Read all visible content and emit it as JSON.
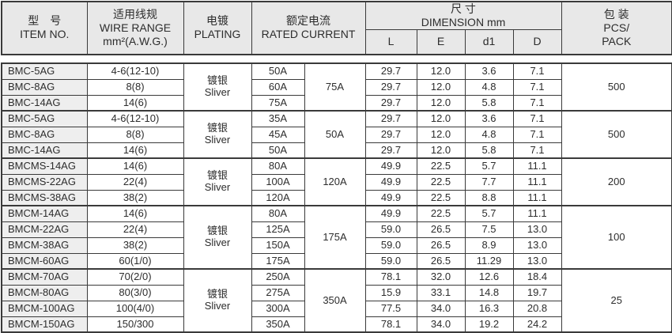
{
  "colors": {
    "border": "#3a3a3a",
    "header_bg": "#e8e8e8",
    "item_bg": "#eeeeee",
    "text": "#2d2d2d"
  },
  "table": {
    "header": {
      "item_no_zh": "型　号",
      "item_no_en": "ITEM NO.",
      "wire_zh": "适用线规",
      "wire_en": "WIRE RANGE",
      "wire_unit": "mm²(A.W.G.)",
      "plating_zh": "电镀",
      "plating_en": "PLATING",
      "current_zh": "额定电流",
      "current_en": "RATED CURRENT",
      "dimension_zh": "尺 寸",
      "dimension_en": "DIMENSION mm",
      "dim_cols": [
        "L",
        "E",
        "d1",
        "D"
      ],
      "pack_zh": "包 装",
      "pack_en_line1": "PCS/",
      "pack_en_line2": "PACK"
    },
    "groups": [
      {
        "plating_zh": "镀银",
        "plating_en": "Sliver",
        "group_current": "75A",
        "pack": "500",
        "rows": [
          {
            "item": "BMC-5AG",
            "wire": "4-6(12-10)",
            "current": "50A",
            "L": "29.7",
            "E": "12.0",
            "d1": "3.6",
            "D": "7.1"
          },
          {
            "item": "BMC-8AG",
            "wire": "8(8)",
            "current": "60A",
            "L": "29.7",
            "E": "12.0",
            "d1": "4.8",
            "D": "7.1"
          },
          {
            "item": "BMC-14AG",
            "wire": "14(6)",
            "current": "75A",
            "L": "29.7",
            "E": "12.0",
            "d1": "5.8",
            "D": "7.1"
          }
        ]
      },
      {
        "plating_zh": "镀银",
        "plating_en": "Sliver",
        "group_current": "50A",
        "pack": "500",
        "rows": [
          {
            "item": "BMC-5AG",
            "wire": "4-6(12-10)",
            "current": "35A",
            "L": "29.7",
            "E": "12.0",
            "d1": "3.6",
            "D": "7.1"
          },
          {
            "item": "BMC-8AG",
            "wire": "8(8)",
            "current": "45A",
            "L": "29.7",
            "E": "12.0",
            "d1": "4.8",
            "D": "7.1"
          },
          {
            "item": "BMC-14AG",
            "wire": "14(6)",
            "current": "50A",
            "L": "29.7",
            "E": "12.0",
            "d1": "5.8",
            "D": "7.1"
          }
        ]
      },
      {
        "plating_zh": "镀银",
        "plating_en": "Sliver",
        "group_current": "120A",
        "pack": "200",
        "rows": [
          {
            "item": "BMCMS-14AG",
            "wire": "14(6)",
            "current": "80A",
            "L": "49.9",
            "E": "22.5",
            "d1": "5.7",
            "D": "11.1"
          },
          {
            "item": "BMCMS-22AG",
            "wire": "22(4)",
            "current": "100A",
            "L": "49.9",
            "E": "22.5",
            "d1": "7.7",
            "D": "11.1"
          },
          {
            "item": "BMCMS-38AG",
            "wire": "38(2)",
            "current": "120A",
            "L": "49.9",
            "E": "22.5",
            "d1": "8.8",
            "D": "11.1"
          }
        ]
      },
      {
        "plating_zh": "镀银",
        "plating_en": "Sliver",
        "group_current": "175A",
        "pack": "100",
        "rows": [
          {
            "item": "BMCM-14AG",
            "wire": "14(6)",
            "current": "80A",
            "L": "49.9",
            "E": "22.5",
            "d1": "5.7",
            "D": "11.1"
          },
          {
            "item": "BMCM-22AG",
            "wire": "22(4)",
            "current": "125A",
            "L": "59.0",
            "E": "26.5",
            "d1": "7.5",
            "D": "13.0"
          },
          {
            "item": "BMCM-38AG",
            "wire": "38(2)",
            "current": "150A",
            "L": "59.0",
            "E": "26.5",
            "d1": "8.9",
            "D": "13.0"
          },
          {
            "item": "BMCM-60AG",
            "wire": "60(1/0)",
            "current": "175A",
            "L": "59.0",
            "E": "26.5",
            "d1": "11.29",
            "D": "13.0"
          }
        ]
      },
      {
        "plating_zh": "镀银",
        "plating_en": "Sliver",
        "group_current": "350A",
        "pack": "25",
        "rows": [
          {
            "item": "BMCM-70AG",
            "wire": "70(2/0)",
            "current": "250A",
            "L": "78.1",
            "E": "32.0",
            "d1": "12.6",
            "D": "18.4"
          },
          {
            "item": "BMCM-80AG",
            "wire": "80(3/0)",
            "current": "275A",
            "L": "15.9",
            "E": "33.1",
            "d1": "14.8",
            "D": "19.7"
          },
          {
            "item": "BMCM-100AG",
            "wire": "100(4/0)",
            "current": "300A",
            "L": "77.5",
            "E": "34.0",
            "d1": "16.3",
            "D": "20.8"
          },
          {
            "item": "BMCM-150AG",
            "wire": "150/300",
            "current": "350A",
            "L": "78.1",
            "E": "34.0",
            "d1": "19.2",
            "D": "24.2"
          }
        ]
      }
    ]
  }
}
